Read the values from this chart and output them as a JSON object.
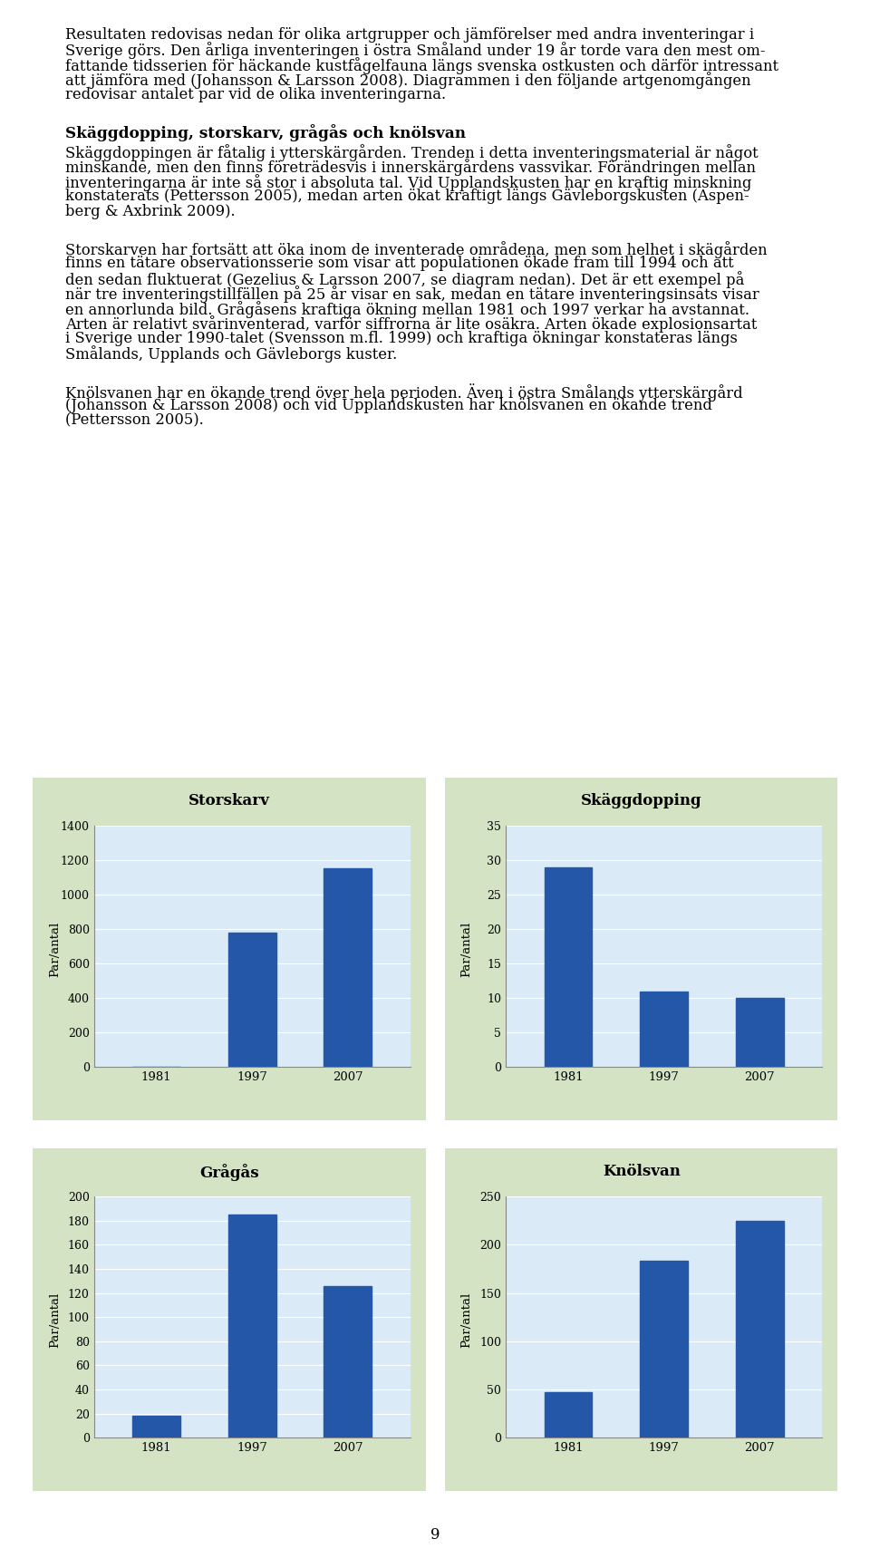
{
  "page_bg": "#ffffff",
  "text_color": "#000000",
  "chart_outer_bg": "#d4e3c3",
  "chart_inner_bg": "#daeaf7",
  "bar_color": "#2457a8",
  "ylabel": "Par/antal",
  "years": [
    "1981",
    "1997",
    "2007"
  ],
  "charts": [
    {
      "title": "Storskarv",
      "values": [
        0,
        780,
        1150
      ],
      "ylim": [
        0,
        1400
      ],
      "yticks": [
        0,
        200,
        400,
        600,
        800,
        1000,
        1200,
        1400
      ]
    },
    {
      "title": "Skäggdopping",
      "values": [
        29,
        11,
        10
      ],
      "ylim": [
        0,
        35
      ],
      "yticks": [
        0,
        5,
        10,
        15,
        20,
        25,
        30,
        35
      ]
    },
    {
      "title": "Grågås",
      "values": [
        18,
        185,
        126
      ],
      "ylim": [
        0,
        200
      ],
      "yticks": [
        0,
        20,
        40,
        60,
        80,
        100,
        120,
        140,
        160,
        180,
        200
      ]
    },
    {
      "title": "Knölsvan",
      "values": [
        47,
        183,
        225
      ],
      "ylim": [
        0,
        250
      ],
      "yticks": [
        0,
        50,
        100,
        150,
        200,
        250
      ]
    }
  ],
  "p1_lines": [
    "Resultaten redovisas nedan för olika artgrupper och jämförelser med andra inventeringar i",
    "Sverige görs. Den årliga inventeringen i östra Småland under 19 år torde vara den mest om-",
    "fattande tidsserien för häckande kustfågelfauna längs svenska ostkusten och därför intressant",
    "att jämföra med (Johansson & Larsson 2008). Diagrammen i den följande artgenomgången",
    "redovisar antalet par vid de olika inventeringarna."
  ],
  "heading": "Skäggdopping, storskarv, grågås och knölsvan",
  "p2_lines": [
    "Skäggdoppingen är fåtalig i ytterskärgården. Trenden i detta inventeringsmaterial är något",
    "minskande, men den finns företrädesvis i innerskärgårdens vassvikar. Förändringen mellan",
    "inventeringarna är inte så stor i absoluta tal. Vid Upplandskusten har en kraftig minskning",
    "konstaterats (Pettersson 2005), medan arten ökat kraftigt längs Gävleborgskusten (Aspen-",
    "berg & Axbrink 2009)."
  ],
  "p3_lines": [
    "Storskarven har fortsätt att öka inom de inventerade områdena, men som helhet i skägården",
    "finns en tätare observationsserie som visar att populationen ökade fram till 1994 och att",
    "den sedan fluktuerat (Gezelius & Larsson 2007, se diagram nedan). Det är ett exempel på",
    "när tre inventeringstillfällen på 25 år visar en sak, medan en tätare inventeringsinsats visar",
    "en annorlunda bild. Grågåsens kraftiga ökning mellan 1981 och 1997 verkar ha avstannat.",
    "Arten är relativt svårinventerad, varför siffrorna är lite osäkra. Arten ökade explosionsartat",
    "i Sverige under 1990-talet (Svensson m.fl. 1999) och kraftiga ökningar konstateras längs",
    "Smålands, Upplands och Gävleborgs kuster."
  ],
  "p4_lines": [
    "Knölsvanen har en ökande trend över hela perioden. Även i östra Smålands ytterskärgård",
    "(Johansson & Larsson 2008) och vid Upplandskusten har knölsvanen en ökande trend",
    "(Pettersson 2005)."
  ],
  "page_number": "9",
  "text_fontsize": 11.8,
  "heading_fontsize": 12.2
}
